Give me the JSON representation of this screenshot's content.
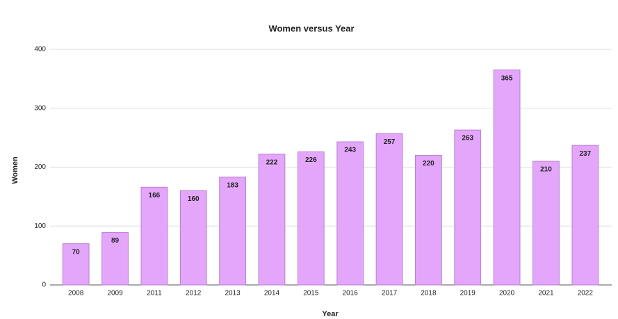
{
  "chart_data": {
    "type": "bar",
    "title": "Women versus Year",
    "x_label": "Year",
    "y_label": "Women",
    "categories": [
      "2008",
      "2009",
      "2011",
      "2012",
      "2013",
      "2014",
      "2015",
      "2016",
      "2017",
      "2018",
      "2019",
      "2020",
      "2021",
      "2022"
    ],
    "values": [
      70,
      89,
      166,
      160,
      183,
      222,
      226,
      243,
      257,
      220,
      263,
      365,
      210,
      237
    ],
    "color": "#e4a6fb",
    "ylim": [
      0,
      400
    ],
    "yticks": [
      0,
      100,
      200,
      300,
      400
    ],
    "grid": true
  }
}
